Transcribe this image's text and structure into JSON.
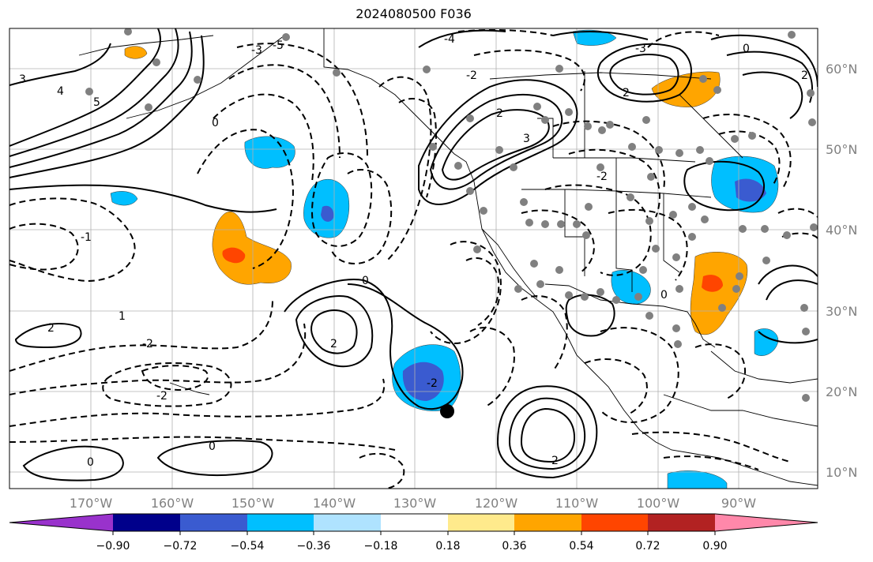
{
  "title": "2024080500 F036",
  "longitude_labels": [
    "170°W",
    "160°W",
    "150°W",
    "140°W",
    "130°W",
    "120°W",
    "110°W",
    "100°W",
    "90°W"
  ],
  "latitude_labels": [
    "60°N",
    "50°N",
    "40°N",
    "30°N",
    "20°N",
    "10°N"
  ],
  "colorbar": {
    "ticks": [
      "−0.90",
      "−0.72",
      "−0.54",
      "−0.36",
      "−0.18",
      "0.18",
      "0.36",
      "0.54",
      "0.72",
      "0.90"
    ],
    "colors": [
      "#9932cc",
      "#00008b",
      "#3a5bd0",
      "#00bfff",
      "#afe3ff",
      "#ffffff",
      "#ffea8c",
      "#ffa500",
      "#ff4500",
      "#b22222",
      "#ff88aa"
    ]
  },
  "colors": {
    "negative_light": "#00bfff",
    "negative_strong": "#3a5bd0",
    "positive_light": "#ffa500",
    "positive_strong": "#ff4500",
    "station_dot": "#808080"
  },
  "contour_labels": [
    "-5",
    "-4",
    "-3",
    "-2",
    "-1",
    "0",
    "1",
    "2",
    "3",
    "4",
    "5",
    "0",
    "-2",
    "2",
    "-2",
    "0",
    "0",
    "-2",
    "2",
    "-3",
    "3",
    "2",
    "-2",
    "0",
    "2",
    "2",
    "0"
  ]
}
